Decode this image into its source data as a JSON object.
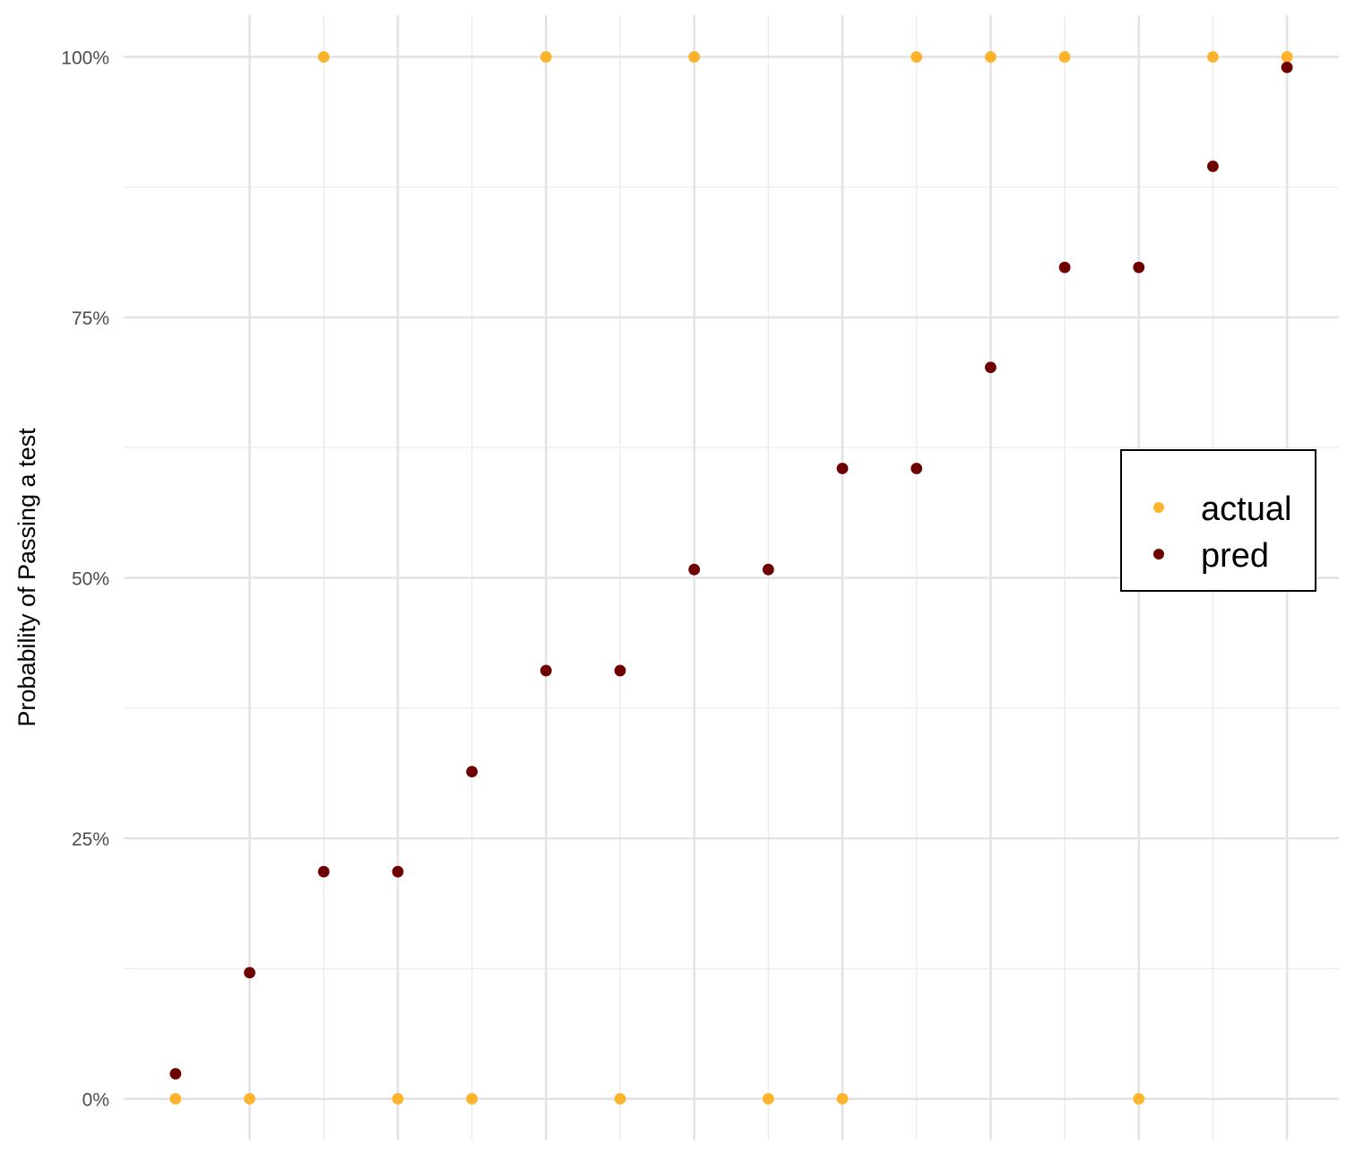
{
  "chart_data": {
    "type": "scatter",
    "title": "",
    "xlabel": "",
    "ylabel": "Probability of Passing a test",
    "ylim": [
      -0.04,
      1.04
    ],
    "xlim": [
      0.3,
      16.7
    ],
    "y_ticks": [
      {
        "value": 0,
        "label": "0%"
      },
      {
        "value": 0.25,
        "label": "25%"
      },
      {
        "value": 0.5,
        "label": "50%"
      },
      {
        "value": 0.75,
        "label": "75%"
      },
      {
        "value": 1,
        "label": "100%"
      }
    ],
    "y_minor_gridlines": [
      0.125,
      0.375,
      0.625,
      0.875
    ],
    "x_major_gridlines": [
      2,
      4,
      6,
      8,
      10,
      12,
      14,
      16
    ],
    "x_minor_gridlines": [
      3,
      5,
      7,
      9,
      11,
      13,
      15
    ],
    "grid": true,
    "legend_position": "right",
    "series": [
      {
        "name": "actual",
        "color": "#FDB32B",
        "x": [
          1,
          2,
          3,
          4,
          5,
          6,
          7,
          8,
          9,
          10,
          11,
          12,
          13,
          14,
          15,
          16
        ],
        "y": [
          0,
          0,
          1,
          0,
          0,
          1,
          0,
          1,
          0,
          0,
          1,
          1,
          1,
          0,
          1,
          1
        ]
      },
      {
        "name": "pred",
        "color": "#6E0000",
        "x": [
          1,
          2,
          3,
          4,
          5,
          6,
          7,
          8,
          9,
          10,
          11,
          12,
          13,
          14,
          15,
          16
        ],
        "y": [
          0.024,
          0.121,
          0.218,
          0.218,
          0.314,
          0.411,
          0.411,
          0.508,
          0.508,
          0.605,
          0.605,
          0.702,
          0.798,
          0.798,
          0.895,
          0.99
        ]
      }
    ]
  }
}
